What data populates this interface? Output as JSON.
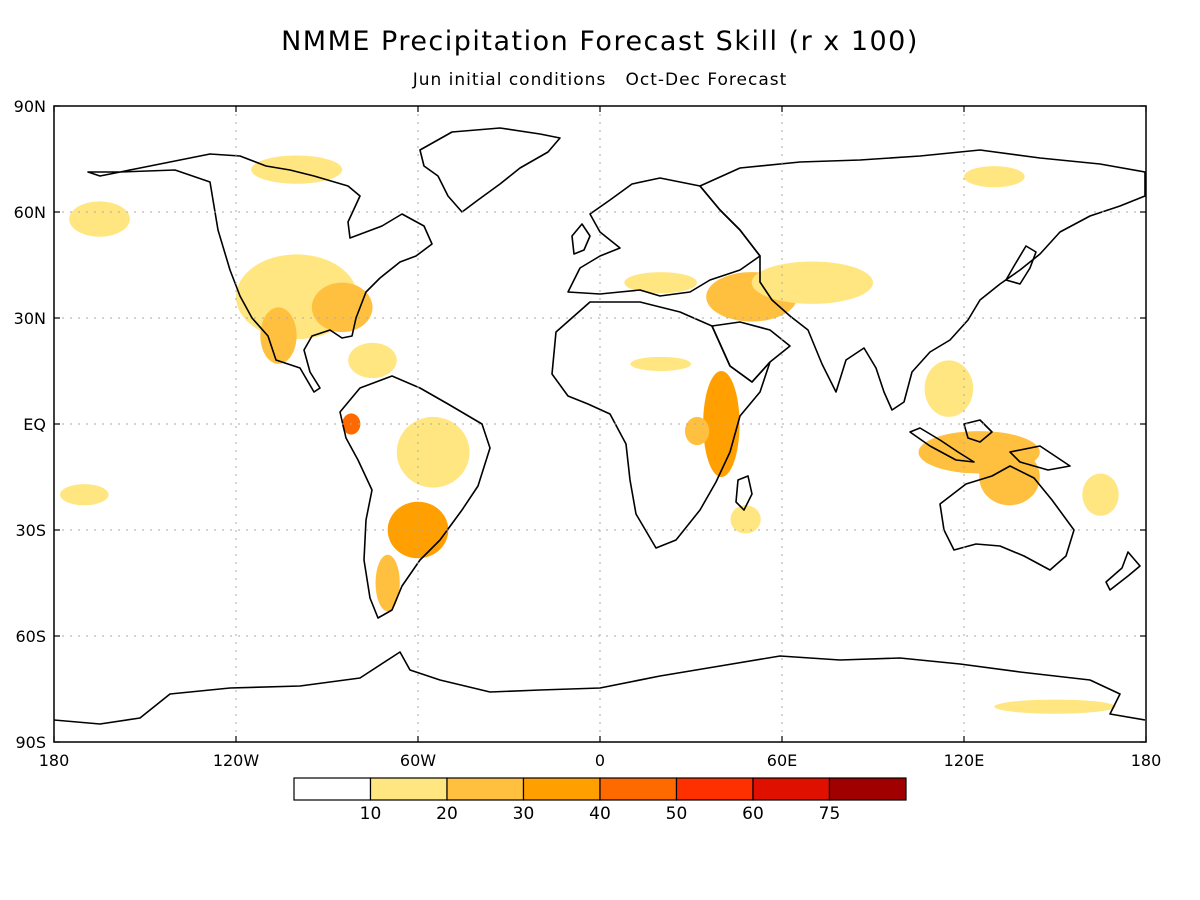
{
  "title": "NMME Precipitation Forecast Skill (r x 100)",
  "subtitle": {
    "initial": "Jun initial conditions",
    "forecast": "Oct-Dec Forecast"
  },
  "map": {
    "lon_range": [
      -180,
      180
    ],
    "lat_range": [
      -90,
      90
    ],
    "grid": "dotted",
    "lat_labels": [
      {
        "lat": 90,
        "label": "90N"
      },
      {
        "lat": 60,
        "label": "60N"
      },
      {
        "lat": 30,
        "label": "30N"
      },
      {
        "lat": 0,
        "label": "EQ"
      },
      {
        "lat": -30,
        "label": "30S"
      },
      {
        "lat": -60,
        "label": "60S"
      },
      {
        "lat": -90,
        "label": "90S"
      }
    ],
    "lon_labels": [
      {
        "lon": -180,
        "label": "180"
      },
      {
        "lon": -120,
        "label": "120W"
      },
      {
        "lon": -60,
        "label": "60W"
      },
      {
        "lon": 0,
        "label": "0"
      },
      {
        "lon": 60,
        "label": "60E"
      },
      {
        "lon": 120,
        "label": "120E"
      },
      {
        "lon": 180,
        "label": "180"
      }
    ]
  },
  "legend": {
    "colors": [
      "#ffffff",
      "#ffe680",
      "#ffc040",
      "#ffa000",
      "#ff6a00",
      "#ff3000",
      "#e01000",
      "#a00000"
    ],
    "labels": [
      "10",
      "20",
      "30",
      "40",
      "50",
      "60",
      "75"
    ]
  },
  "skill_regions": [
    {
      "lon": -100,
      "lat": 36,
      "rx": 20,
      "ry": 12,
      "level": 1
    },
    {
      "lon": -85,
      "lat": 33,
      "rx": 10,
      "ry": 7,
      "level": 2
    },
    {
      "lon": -106,
      "lat": 25,
      "rx": 6,
      "ry": 8,
      "level": 2
    },
    {
      "lon": -75,
      "lat": 18,
      "rx": 8,
      "ry": 5,
      "level": 1
    },
    {
      "lon": -82,
      "lat": 0,
      "rx": 3,
      "ry": 3,
      "level": 4
    },
    {
      "lon": -55,
      "lat": -8,
      "rx": 12,
      "ry": 10,
      "level": 1
    },
    {
      "lon": -60,
      "lat": -30,
      "rx": 10,
      "ry": 8,
      "level": 3
    },
    {
      "lon": -70,
      "lat": -45,
      "rx": 4,
      "ry": 8,
      "level": 2
    },
    {
      "lon": -165,
      "lat": 58,
      "rx": 10,
      "ry": 5,
      "level": 1
    },
    {
      "lon": -100,
      "lat": 72,
      "rx": 15,
      "ry": 4,
      "level": 1
    },
    {
      "lon": 40,
      "lat": 0,
      "rx": 6,
      "ry": 15,
      "level": 3
    },
    {
      "lon": 32,
      "lat": -2,
      "rx": 4,
      "ry": 4,
      "level": 2
    },
    {
      "lon": 48,
      "lat": -27,
      "rx": 5,
      "ry": 4,
      "level": 1
    },
    {
      "lon": 50,
      "lat": 36,
      "rx": 15,
      "ry": 7,
      "level": 2
    },
    {
      "lon": 70,
      "lat": 40,
      "rx": 20,
      "ry": 6,
      "level": 1
    },
    {
      "lon": 20,
      "lat": 40,
      "rx": 12,
      "ry": 3,
      "level": 1
    },
    {
      "lon": 115,
      "lat": 10,
      "rx": 8,
      "ry": 8,
      "level": 1
    },
    {
      "lon": 125,
      "lat": -8,
      "rx": 20,
      "ry": 6,
      "level": 2
    },
    {
      "lon": 135,
      "lat": -15,
      "rx": 10,
      "ry": 8,
      "level": 2
    },
    {
      "lon": 165,
      "lat": -20,
      "rx": 6,
      "ry": 6,
      "level": 1
    },
    {
      "lon": 130,
      "lat": 70,
      "rx": 10,
      "ry": 3,
      "level": 1
    },
    {
      "lon": 150,
      "lat": -80,
      "rx": 20,
      "ry": 2,
      "level": 1
    },
    {
      "lon": 20,
      "lat": 17,
      "rx": 10,
      "ry": 2,
      "level": 1
    },
    {
      "lon": -170,
      "lat": -20,
      "rx": 8,
      "ry": 3,
      "level": 1
    }
  ]
}
